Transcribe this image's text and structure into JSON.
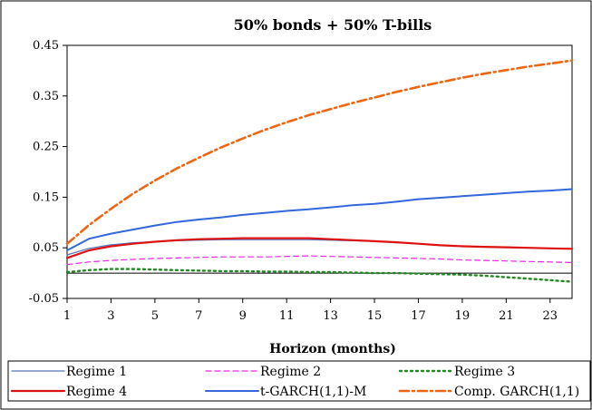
{
  "chart_data": {
    "type": "line",
    "title": "50% bonds + 50% T-bills",
    "xlabel": "Horizon (months)",
    "ylabel": "",
    "x": [
      1,
      2,
      3,
      4,
      5,
      6,
      7,
      8,
      9,
      10,
      11,
      12,
      13,
      14,
      15,
      16,
      17,
      18,
      19,
      20,
      21,
      22,
      23,
      24
    ],
    "x_ticks": [
      "1",
      "3",
      "5",
      "7",
      "9",
      "11",
      "13",
      "15",
      "17",
      "19",
      "21",
      "23"
    ],
    "y_ticks": [
      "-0.05",
      "0.05",
      "0.15",
      "0.25",
      "0.35",
      "0.45"
    ],
    "xlim": [
      1,
      24
    ],
    "ylim": [
      -0.05,
      0.45
    ],
    "grid": "none",
    "legend_position": "bottom",
    "series": [
      {
        "name": "Regime 1",
        "color": "#5577bb",
        "style": "solid-thin",
        "values": [
          0.036,
          0.049,
          0.056,
          0.06,
          0.062,
          0.064,
          0.065,
          0.066,
          0.066,
          0.066,
          0.066,
          0.066,
          0.065,
          0.064,
          0.063,
          0.061,
          0.058,
          0.055,
          0.053,
          0.052,
          0.051,
          0.05,
          0.049,
          0.048
        ]
      },
      {
        "name": "Regime 2",
        "color": "#ee22ee",
        "style": "dashed",
        "values": [
          0.017,
          0.022,
          0.025,
          0.027,
          0.029,
          0.03,
          0.031,
          0.032,
          0.032,
          0.032,
          0.033,
          0.034,
          0.033,
          0.032,
          0.031,
          0.03,
          0.029,
          0.028,
          0.026,
          0.025,
          0.024,
          0.023,
          0.022,
          0.021
        ]
      },
      {
        "name": "Regime 3",
        "color": "#228822",
        "style": "dotted",
        "values": [
          0.002,
          0.006,
          0.008,
          0.008,
          0.007,
          0.006,
          0.005,
          0.004,
          0.004,
          0.003,
          0.003,
          0.002,
          0.002,
          0.001,
          0.0,
          0.0,
          -0.001,
          -0.002,
          -0.003,
          -0.005,
          -0.008,
          -0.011,
          -0.014,
          -0.017
        ]
      },
      {
        "name": "Regime 4",
        "color": "#dd1111",
        "style": "solid-thick",
        "values": [
          0.03,
          0.045,
          0.053,
          0.058,
          0.062,
          0.065,
          0.067,
          0.068,
          0.069,
          0.069,
          0.069,
          0.069,
          0.067,
          0.065,
          0.063,
          0.061,
          0.058,
          0.055,
          0.053,
          0.052,
          0.051,
          0.05,
          0.049,
          0.048
        ]
      },
      {
        "name": "t-GARCH(1,1)-M",
        "color": "#3366dd",
        "style": "solid-medium",
        "values": [
          0.045,
          0.068,
          0.078,
          0.086,
          0.094,
          0.101,
          0.106,
          0.11,
          0.115,
          0.119,
          0.123,
          0.126,
          0.13,
          0.134,
          0.137,
          0.141,
          0.146,
          0.149,
          0.152,
          0.155,
          0.158,
          0.161,
          0.163,
          0.166
        ]
      },
      {
        "name": "Comp. GARCH(1,1)",
        "color": "#ee6611",
        "style": "dash-dot",
        "values": [
          0.058,
          0.095,
          0.127,
          0.157,
          0.183,
          0.207,
          0.228,
          0.248,
          0.266,
          0.283,
          0.298,
          0.312,
          0.324,
          0.336,
          0.347,
          0.358,
          0.368,
          0.377,
          0.386,
          0.394,
          0.401,
          0.408,
          0.414,
          0.42
        ]
      }
    ]
  }
}
